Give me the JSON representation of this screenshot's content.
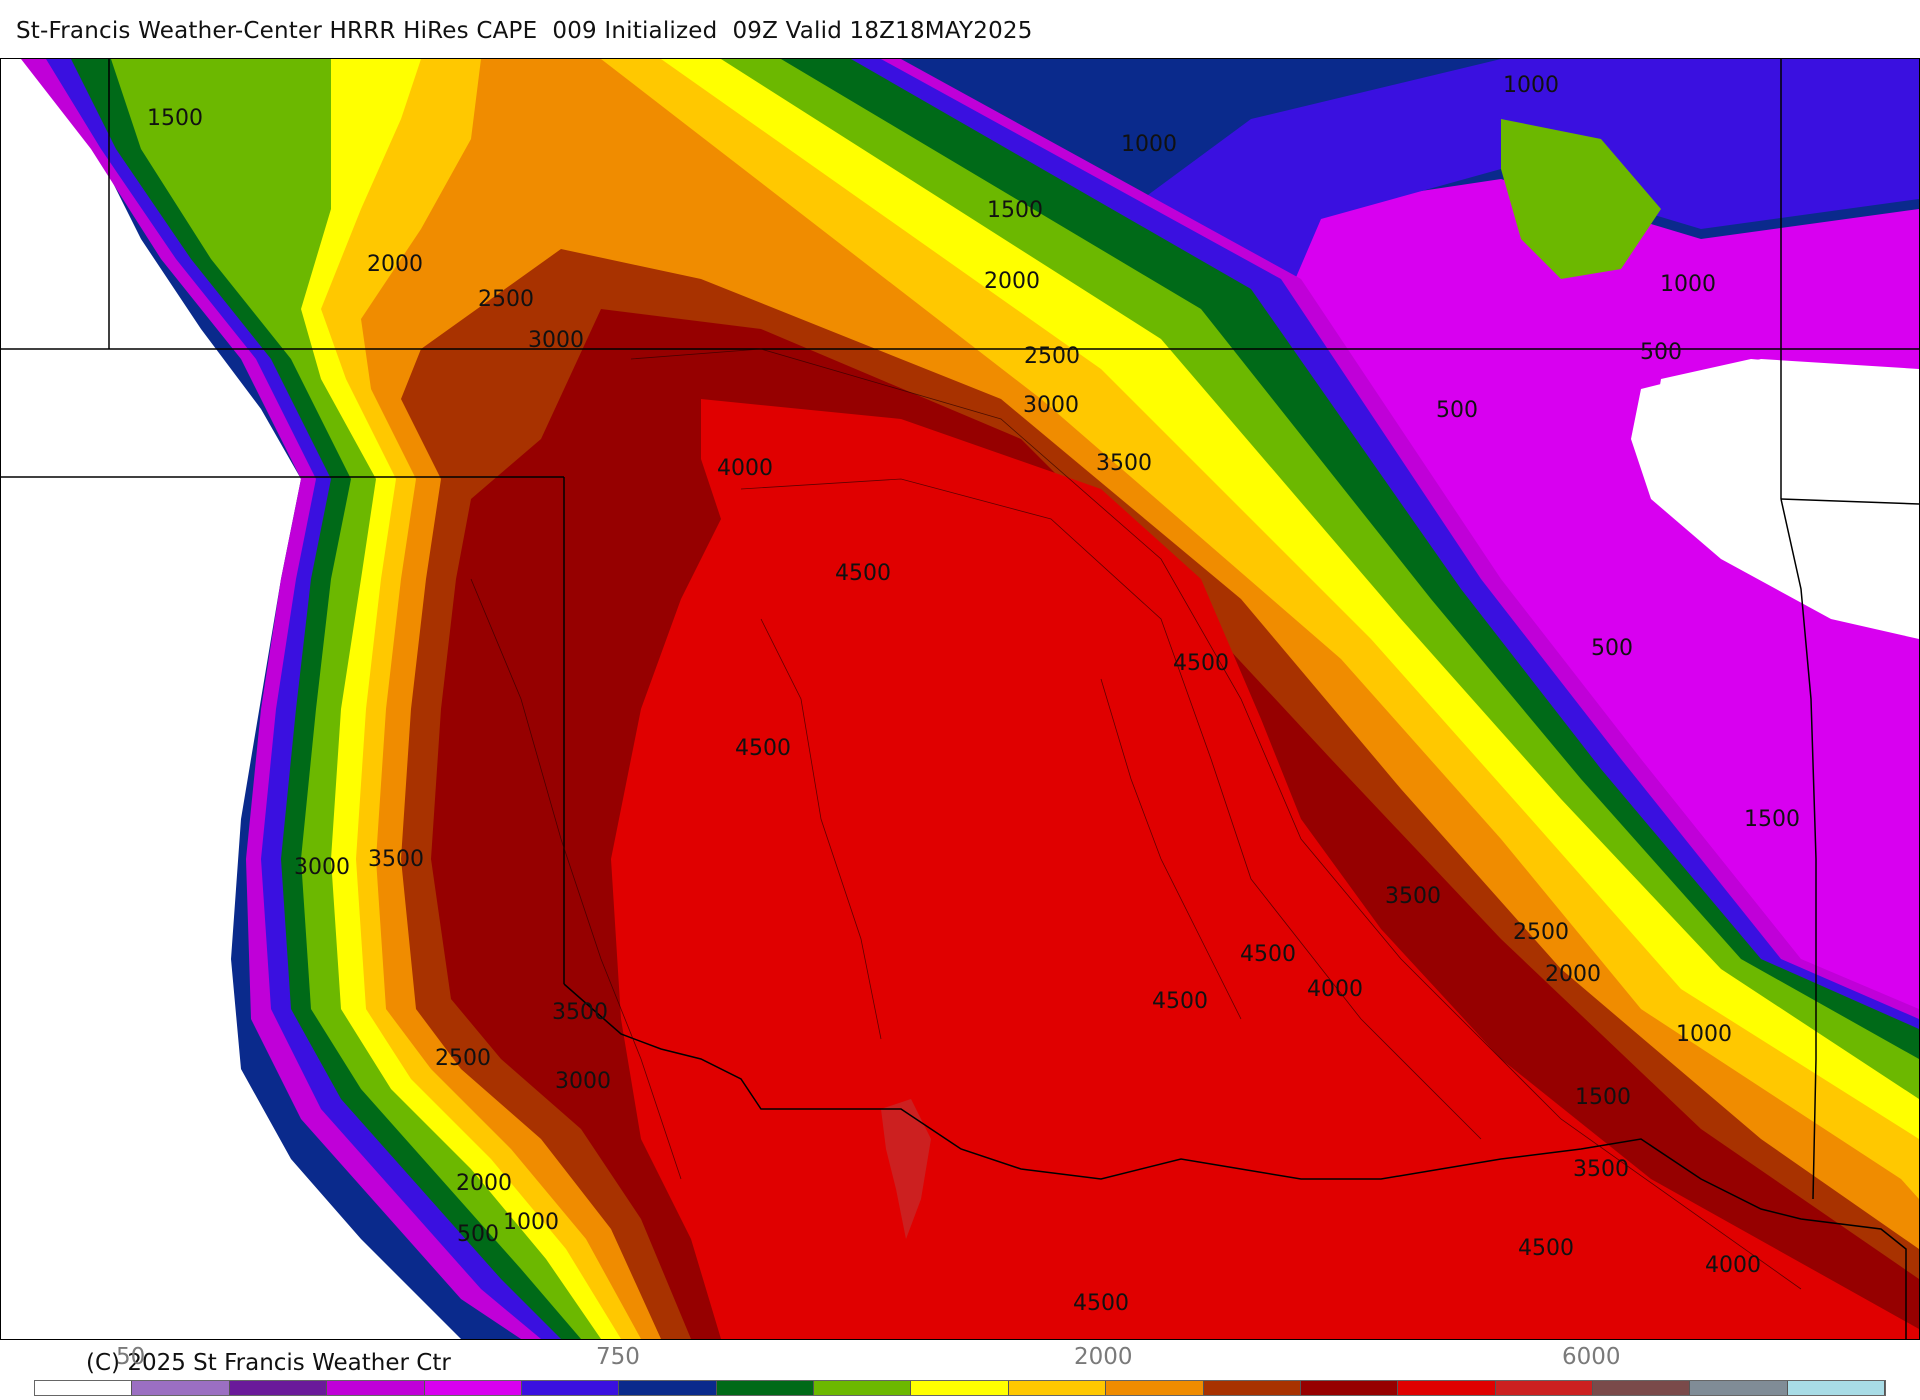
{
  "title": "St-Francis Weather-Center HRRR HiRes CAPE  009 Initialized  09Z Valid 18Z18MAY2025",
  "copyright": "(C) 2025 St Francis Weather Ctr",
  "contour_labels": {
    "l1500_nw": "1500",
    "l2000_w": "2000",
    "l2500_w": "2500",
    "l3000_n": "3000",
    "l1000_n": "1000",
    "l1000_ne": "1000",
    "l1500_n": "1500",
    "l2000_n": "2000",
    "l2500_n": "2500",
    "l3000_n2": "3000",
    "l3500_n": "3500",
    "l4000_c": "4000",
    "l4500_c1": "4500",
    "l4500_e": "4500",
    "l4500_c2": "4500",
    "l1000_e": "1000",
    "l500_e1": "500",
    "l500_e2": "500",
    "l500_e3": "500",
    "l1500_e": "1500",
    "l3000_w": "3000",
    "l3500_w": "3500",
    "l3500_e": "3500",
    "l2500_e": "2500",
    "l2000_e": "2000",
    "l4500_se": "4500",
    "l4000_se": "4000",
    "l4500_c3": "4500",
    "l1000_se": "1000",
    "l3500_sw": "3500",
    "l3000_sw": "3000",
    "l2500_sw": "2500",
    "l2000_sw": "2000",
    "l1000_sw": "1000",
    "l500_sw": "500",
    "l1500_se": "1500",
    "l3500_s": "3500",
    "l4500_s1": "4500",
    "l4000_s": "4000",
    "l4500_s2": "4500"
  },
  "colorbar": {
    "tick_labels": [
      "50",
      "750",
      "2000",
      "6000"
    ],
    "colors": [
      "#ffffff",
      "#9b6fc2",
      "#6a1a9a",
      "#c000d8",
      "#d800f0",
      "#3a10e0",
      "#0a2a8c",
      "#006a18",
      "#6cb800",
      "#ffff00",
      "#ffc800",
      "#f08c00",
      "#a83200",
      "#960000",
      "#e00000",
      "#cc2020",
      "#7a4a4a",
      "#808c96",
      "#a8dce6"
    ]
  }
}
